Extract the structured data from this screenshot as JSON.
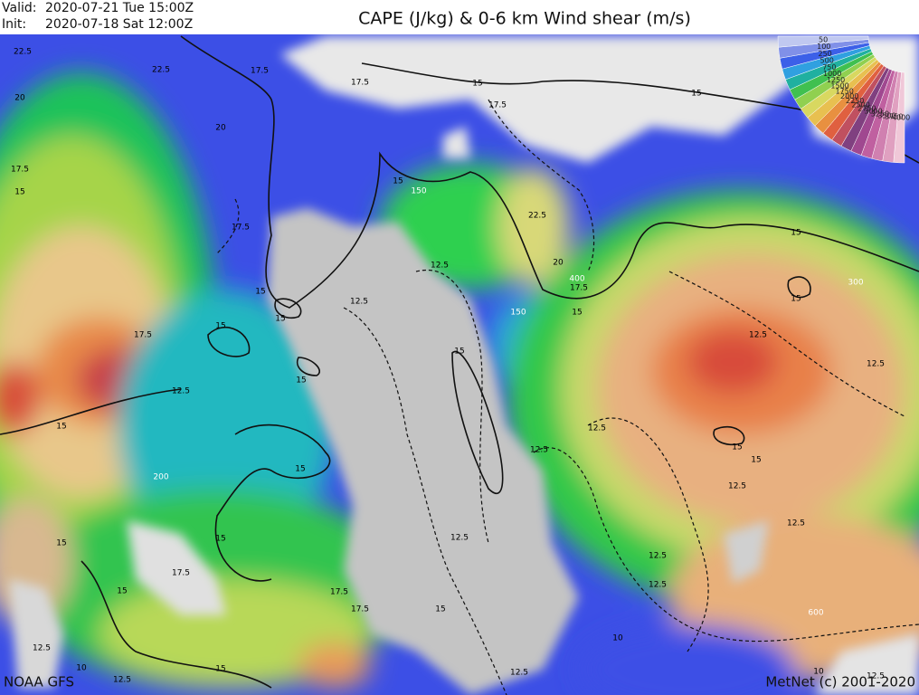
{
  "header": {
    "valid_label": "Valid:",
    "valid_time": "2020-07-21 Tue  15:00Z",
    "init_label": "Init:",
    "init_time": "2020-07-18 Sat  12:00Z",
    "title": "CAPE (J/kg) & 0-6 km Wind shear (m/s)"
  },
  "legend": {
    "labels": [
      "4000",
      "3750",
      "3500",
      "3250",
      "3000",
      "2750",
      "2500",
      "2250",
      "2000",
      "1750",
      "1500",
      "1250",
      "1000",
      "750",
      "500",
      "250",
      "100",
      "50"
    ]
  },
  "contour_labels": [
    "22.5",
    "22.5",
    "17.5",
    "17.5",
    "15",
    "15",
    "17.5",
    "20",
    "20",
    "17.5",
    "15",
    "15",
    "150",
    "22.5",
    "17.5",
    "15",
    "12.5",
    "20",
    "400",
    "17.5",
    "300",
    "15",
    "15",
    "12.5",
    "150",
    "15",
    "15",
    "15",
    "17.5",
    "12.5",
    "15",
    "12.5",
    "15",
    "12.5",
    "15",
    "12.5",
    "12.5",
    "15",
    "15",
    "15",
    "200",
    "12.5",
    "12.5",
    "15",
    "15",
    "12.5",
    "17.5",
    "12.5",
    "15",
    "17.5",
    "12.5",
    "17.5",
    "15",
    "600",
    "10",
    "12.5",
    "10",
    "15",
    "12.5",
    "12.5",
    "10",
    "12.5"
  ],
  "footer": {
    "source": "NOAA GFS",
    "credit": "MetNet (c) 2001-2020"
  }
}
